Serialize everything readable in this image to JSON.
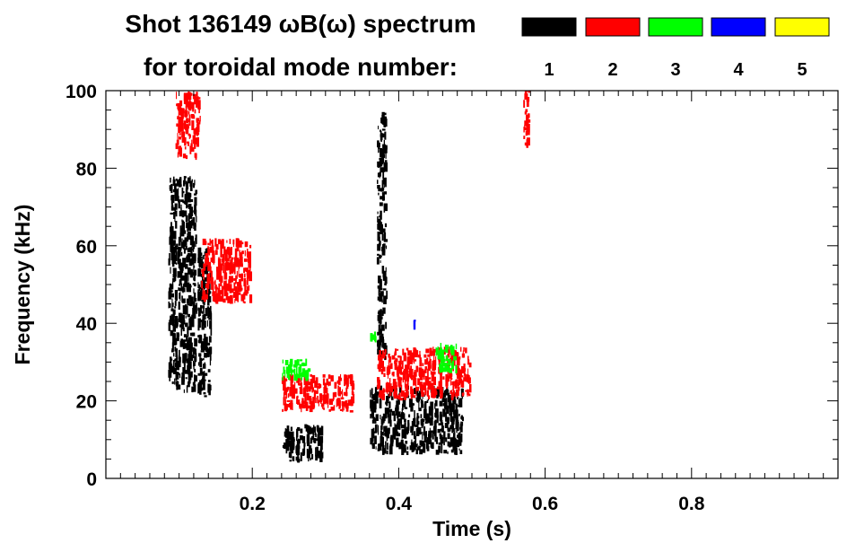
{
  "chart_data": {
    "type": "heatmap",
    "title_line1": "Shot 136149 ωB(ω) spectrum",
    "title_line2": "for toroidal mode number:",
    "xlabel": "Time (s)",
    "ylabel": "Frequency (kHz)",
    "xlim": [
      0.0,
      1.0
    ],
    "ylim": [
      0,
      100
    ],
    "x_ticks": [
      0.2,
      0.4,
      0.6,
      0.8
    ],
    "x_tick_labels": [
      "0.2",
      "0.4",
      "0.6",
      "0.8"
    ],
    "y_ticks": [
      0,
      20,
      40,
      60,
      80,
      100
    ],
    "y_tick_labels": [
      "0",
      "20",
      "40",
      "60",
      "80",
      "100"
    ],
    "grid": false,
    "legend": {
      "placement": "top-right",
      "entries": [
        {
          "label": "1",
          "color": "#000000"
        },
        {
          "label": "2",
          "color": "#ff0000"
        },
        {
          "label": "3",
          "color": "#00ff00"
        },
        {
          "label": "4",
          "color": "#0000ff"
        },
        {
          "label": "5",
          "color": "#ffff00"
        }
      ]
    },
    "regions": [
      {
        "mode": 1,
        "t": [
          0.085,
          0.125
        ],
        "f": [
          22,
          78
        ]
      },
      {
        "mode": 1,
        "t": [
          0.125,
          0.145
        ],
        "f": [
          20,
          60
        ]
      },
      {
        "mode": 1,
        "t": [
          0.24,
          0.3
        ],
        "f": [
          4,
          14
        ]
      },
      {
        "mode": 1,
        "t": [
          0.36,
          0.49
        ],
        "f": [
          6,
          24
        ]
      },
      {
        "mode": 1,
        "t": [
          0.37,
          0.385
        ],
        "f": [
          30,
          95
        ]
      },
      {
        "mode": 2,
        "t": [
          0.095,
          0.13
        ],
        "f": [
          82,
          100
        ]
      },
      {
        "mode": 2,
        "t": [
          0.13,
          0.2
        ],
        "f": [
          45,
          62
        ]
      },
      {
        "mode": 2,
        "t": [
          0.24,
          0.34
        ],
        "f": [
          17,
          27
        ]
      },
      {
        "mode": 2,
        "t": [
          0.37,
          0.5
        ],
        "f": [
          20,
          34
        ]
      },
      {
        "mode": 2,
        "t": [
          0.57,
          0.58
        ],
        "f": [
          85,
          100
        ]
      },
      {
        "mode": 3,
        "t": [
          0.24,
          0.28
        ],
        "f": [
          25,
          31
        ]
      },
      {
        "mode": 3,
        "t": [
          0.45,
          0.48
        ],
        "f": [
          27,
          35
        ]
      },
      {
        "mode": 3,
        "t": [
          0.36,
          0.37
        ],
        "f": [
          35,
          38
        ]
      },
      {
        "mode": 4,
        "t": [
          0.42,
          0.425
        ],
        "f": [
          40,
          41
        ]
      }
    ]
  }
}
